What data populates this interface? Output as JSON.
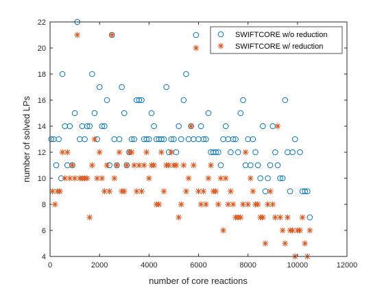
{
  "chart_data": {
    "type": "scatter",
    "title": "",
    "xlabel": "number of core reactions",
    "ylabel": "number of solved LPs",
    "xlim": [
      0,
      12000
    ],
    "ylim": [
      4,
      22
    ],
    "x_ticks": [
      0,
      2000,
      4000,
      6000,
      8000,
      10000,
      12000
    ],
    "y_ticks": [
      4,
      6,
      8,
      10,
      12,
      14,
      16,
      18,
      20,
      22
    ],
    "grid": false,
    "legend_position": "top-right",
    "series": [
      {
        "name": "SWIFTCORE w/o reduction",
        "marker": "circle",
        "color": "#0072BD",
        "points": [
          [
            50,
            13
          ],
          [
            150,
            13
          ],
          [
            250,
            11
          ],
          [
            350,
            13
          ],
          [
            450,
            10
          ],
          [
            500,
            18
          ],
          [
            600,
            14
          ],
          [
            700,
            11
          ],
          [
            800,
            14
          ],
          [
            900,
            11
          ],
          [
            1000,
            15
          ],
          [
            1100,
            22
          ],
          [
            1200,
            13
          ],
          [
            1300,
            14
          ],
          [
            1400,
            13
          ],
          [
            1500,
            14
          ],
          [
            1600,
            14
          ],
          [
            1700,
            18
          ],
          [
            1800,
            15
          ],
          [
            1900,
            13
          ],
          [
            2000,
            17
          ],
          [
            2100,
            14
          ],
          [
            2200,
            14
          ],
          [
            2300,
            16
          ],
          [
            2400,
            11
          ],
          [
            2500,
            21
          ],
          [
            2600,
            13
          ],
          [
            2700,
            11
          ],
          [
            2800,
            13
          ],
          [
            2900,
            17
          ],
          [
            3000,
            15
          ],
          [
            3100,
            11
          ],
          [
            3200,
            12
          ],
          [
            3300,
            13
          ],
          [
            3400,
            13
          ],
          [
            3500,
            16
          ],
          [
            3600,
            16
          ],
          [
            3700,
            16
          ],
          [
            3800,
            13
          ],
          [
            3900,
            13
          ],
          [
            4000,
            13
          ],
          [
            4100,
            15
          ],
          [
            4200,
            14
          ],
          [
            4300,
            13
          ],
          [
            4400,
            13
          ],
          [
            4500,
            13
          ],
          [
            4600,
            13
          ],
          [
            4700,
            17
          ],
          [
            4800,
            12
          ],
          [
            4900,
            13
          ],
          [
            5000,
            13
          ],
          [
            5100,
            12
          ],
          [
            5200,
            14
          ],
          [
            5300,
            13
          ],
          [
            5400,
            16
          ],
          [
            5500,
            18
          ],
          [
            5600,
            13
          ],
          [
            5700,
            14
          ],
          [
            5800,
            13
          ],
          [
            5900,
            21
          ],
          [
            6000,
            13
          ],
          [
            6100,
            14
          ],
          [
            6200,
            13
          ],
          [
            6300,
            13
          ],
          [
            6400,
            15
          ],
          [
            6500,
            12
          ],
          [
            6600,
            12
          ],
          [
            6700,
            12
          ],
          [
            6800,
            12
          ],
          [
            6900,
            11
          ],
          [
            7000,
            13
          ],
          [
            7100,
            14
          ],
          [
            7200,
            13
          ],
          [
            7300,
            12
          ],
          [
            7400,
            13
          ],
          [
            7500,
            13
          ],
          [
            7600,
            12
          ],
          [
            7700,
            15
          ],
          [
            7800,
            16
          ],
          [
            7900,
            11
          ],
          [
            8000,
            13
          ],
          [
            8100,
            11
          ],
          [
            8200,
            13
          ],
          [
            8300,
            12
          ],
          [
            8400,
            11
          ],
          [
            8500,
            10
          ],
          [
            8600,
            14
          ],
          [
            8700,
            9
          ],
          [
            8800,
            10
          ],
          [
            8900,
            11
          ],
          [
            9000,
            14
          ],
          [
            9100,
            12
          ],
          [
            9200,
            11
          ],
          [
            9300,
            10
          ],
          [
            9400,
            10
          ],
          [
            9500,
            16
          ],
          [
            9600,
            12
          ],
          [
            9700,
            9
          ],
          [
            9800,
            12
          ],
          [
            9900,
            13
          ],
          [
            10100,
            12
          ],
          [
            10200,
            9
          ],
          [
            10300,
            9
          ],
          [
            10400,
            9
          ],
          [
            10500,
            7
          ]
        ]
      },
      {
        "name": "SWIFTCORE w/ reduction",
        "marker": "asterisk",
        "color": "#D95319",
        "points": [
          [
            100,
            9
          ],
          [
            200,
            8
          ],
          [
            300,
            9
          ],
          [
            400,
            9
          ],
          [
            500,
            12
          ],
          [
            600,
            10
          ],
          [
            700,
            12
          ],
          [
            800,
            10
          ],
          [
            900,
            11
          ],
          [
            1000,
            10
          ],
          [
            1100,
            21
          ],
          [
            1200,
            10
          ],
          [
            1300,
            10
          ],
          [
            1400,
            10
          ],
          [
            1500,
            10
          ],
          [
            1600,
            7
          ],
          [
            1700,
            11
          ],
          [
            1800,
            13
          ],
          [
            1900,
            10
          ],
          [
            2000,
            12
          ],
          [
            2100,
            10
          ],
          [
            2200,
            9
          ],
          [
            2300,
            11
          ],
          [
            2400,
            9
          ],
          [
            2500,
            21
          ],
          [
            2600,
            10
          ],
          [
            2700,
            11
          ],
          [
            2800,
            12
          ],
          [
            2900,
            9
          ],
          [
            3000,
            9
          ],
          [
            3100,
            11
          ],
          [
            3200,
            12
          ],
          [
            3300,
            12
          ],
          [
            3400,
            11
          ],
          [
            3500,
            9
          ],
          [
            3600,
            11
          ],
          [
            3700,
            9
          ],
          [
            3800,
            11
          ],
          [
            3900,
            12
          ],
          [
            4000,
            10
          ],
          [
            4100,
            11
          ],
          [
            4200,
            11
          ],
          [
            4300,
            8
          ],
          [
            4400,
            8
          ],
          [
            4500,
            12
          ],
          [
            4600,
            9
          ],
          [
            4700,
            11
          ],
          [
            4800,
            11
          ],
          [
            4900,
            12
          ],
          [
            5000,
            11
          ],
          [
            5100,
            11
          ],
          [
            5200,
            7
          ],
          [
            5300,
            8
          ],
          [
            5400,
            11
          ],
          [
            5500,
            9
          ],
          [
            5600,
            10
          ],
          [
            5700,
            14
          ],
          [
            5800,
            11
          ],
          [
            5900,
            20
          ],
          [
            6000,
            9
          ],
          [
            6100,
            8
          ],
          [
            6200,
            9
          ],
          [
            6300,
            8
          ],
          [
            6400,
            10
          ],
          [
            6500,
            11
          ],
          [
            6600,
            9
          ],
          [
            6700,
            9
          ],
          [
            6800,
            8
          ],
          [
            6900,
            10
          ],
          [
            7000,
            6
          ],
          [
            7100,
            10
          ],
          [
            7200,
            8
          ],
          [
            7300,
            9
          ],
          [
            7400,
            8
          ],
          [
            7500,
            7
          ],
          [
            7600,
            7
          ],
          [
            7700,
            7
          ],
          [
            7800,
            8
          ],
          [
            7900,
            12
          ],
          [
            8000,
            8
          ],
          [
            8100,
            10
          ],
          [
            8200,
            9
          ],
          [
            8300,
            8
          ],
          [
            8400,
            8
          ],
          [
            8500,
            7
          ],
          [
            8600,
            7
          ],
          [
            8700,
            5
          ],
          [
            8800,
            8
          ],
          [
            8900,
            9
          ],
          [
            9000,
            8
          ],
          [
            9100,
            7
          ],
          [
            9200,
            14
          ],
          [
            9300,
            7
          ],
          [
            9400,
            6
          ],
          [
            9500,
            5
          ],
          [
            9600,
            7
          ],
          [
            9700,
            6
          ],
          [
            9800,
            6
          ],
          [
            9900,
            4
          ],
          [
            10000,
            6
          ],
          [
            10100,
            6
          ],
          [
            10200,
            7
          ],
          [
            10300,
            5
          ],
          [
            10400,
            4
          ],
          [
            10500,
            6
          ]
        ]
      }
    ]
  }
}
